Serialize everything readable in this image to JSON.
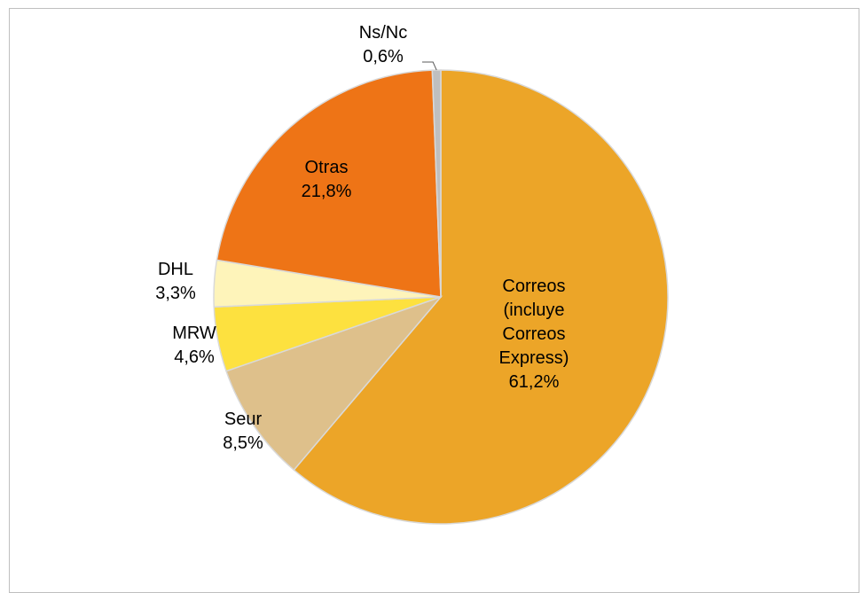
{
  "chart_data": {
    "type": "pie",
    "title": "",
    "slices": [
      {
        "name": "Correos (incluye Correos Express)",
        "label_lines": [
          "Correos",
          "(incluye",
          "Correos",
          "Express)"
        ],
        "value": 61.2,
        "value_label": "61,2%",
        "color": "#ECA528"
      },
      {
        "name": "Seur",
        "label_lines": [
          "Seur"
        ],
        "value": 8.5,
        "value_label": "8,5%",
        "color": "#DEC08B"
      },
      {
        "name": "MRW",
        "label_lines": [
          "MRW"
        ],
        "value": 4.6,
        "value_label": "4,6%",
        "color": "#FDE13F"
      },
      {
        "name": "DHL",
        "label_lines": [
          "DHL"
        ],
        "value": 3.3,
        "value_label": "3,3%",
        "color": "#FEF4BA"
      },
      {
        "name": "Otras",
        "label_lines": [
          "Otras"
        ],
        "value": 21.8,
        "value_label": "21,8%",
        "color": "#EE7416"
      },
      {
        "name": "Ns/Nc",
        "label_lines": [
          "Ns/Nc"
        ],
        "value": 0.6,
        "value_label": "0,6%",
        "color": "#BFBFBF"
      }
    ],
    "start_angle": "12 o'clock",
    "direction": "clockwise",
    "legend": "none"
  }
}
